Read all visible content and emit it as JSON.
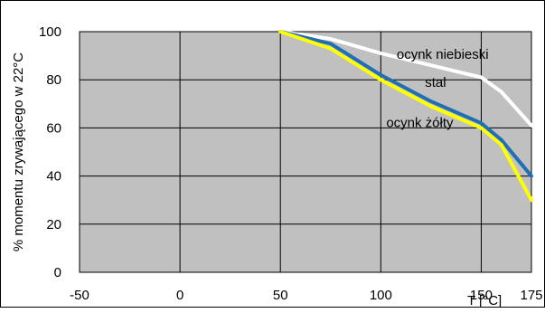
{
  "chart_data": {
    "type": "line",
    "title": "",
    "xlabel": "T [°C]",
    "ylabel": "% momentu zrywającego w 22°C",
    "xlim": [
      -50,
      175
    ],
    "ylim": [
      0,
      100
    ],
    "x_ticks": [
      "-50",
      "0",
      "50",
      "100",
      "150",
      "175"
    ],
    "y_ticks": [
      "0",
      "20",
      "40",
      "60",
      "80",
      "100"
    ],
    "grid": true,
    "plot_background": "#c0c0c0",
    "series": [
      {
        "name": "ocynk niebieski",
        "color": "#ffffff",
        "x": [
          50,
          75,
          100,
          125,
          150,
          160,
          175
        ],
        "y": [
          100,
          97,
          91,
          86,
          81,
          75,
          61
        ]
      },
      {
        "name": "stal",
        "color": "#1f6eb6",
        "x": [
          50,
          75,
          100,
          125,
          150,
          160,
          175
        ],
        "y": [
          100,
          95,
          82,
          71,
          62,
          55,
          40
        ]
      },
      {
        "name": "ocynk żółty",
        "color": "#ffff00",
        "x": [
          50,
          75,
          100,
          125,
          150,
          160,
          175
        ],
        "y": [
          100,
          93,
          80,
          69,
          60,
          53,
          30
        ]
      }
    ]
  }
}
